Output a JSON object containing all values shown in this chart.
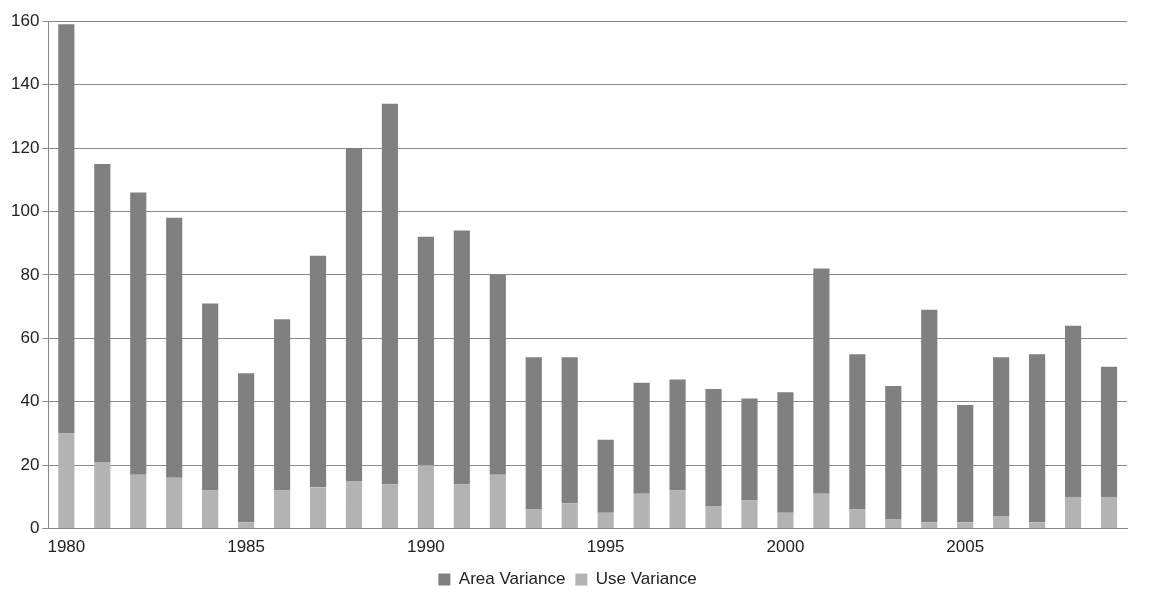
{
  "chart_data": {
    "type": "bar",
    "stacked": true,
    "categories": [
      "1980",
      null,
      null,
      null,
      null,
      "1985",
      null,
      null,
      null,
      null,
      "1990",
      null,
      null,
      null,
      null,
      "1995",
      null,
      null,
      null,
      null,
      "2000",
      null,
      null,
      null,
      null,
      "2005",
      null,
      null,
      null,
      null
    ],
    "series": [
      {
        "name": "Use Variance",
        "color": "#b3b3b3",
        "values": [
          30,
          21,
          17,
          16,
          12,
          2,
          12,
          13,
          15,
          14,
          20,
          14,
          17,
          6,
          8,
          5,
          11,
          12,
          7,
          9,
          5,
          11,
          6,
          3,
          2,
          2,
          4,
          2,
          10,
          10
        ]
      },
      {
        "name": "Area Variance",
        "color": "#808080",
        "values": [
          129,
          94,
          89,
          82,
          59,
          47,
          54,
          73,
          105,
          120,
          72,
          80,
          63,
          48,
          46,
          23,
          35,
          35,
          37,
          32,
          38,
          71,
          49,
          42,
          67,
          37,
          50,
          53,
          54,
          41
        ]
      }
    ],
    "ylim": [
      0,
      160
    ],
    "yticks": [
      0,
      20,
      40,
      60,
      80,
      100,
      120,
      140,
      160
    ],
    "grid": "y",
    "legend": "bottom"
  }
}
